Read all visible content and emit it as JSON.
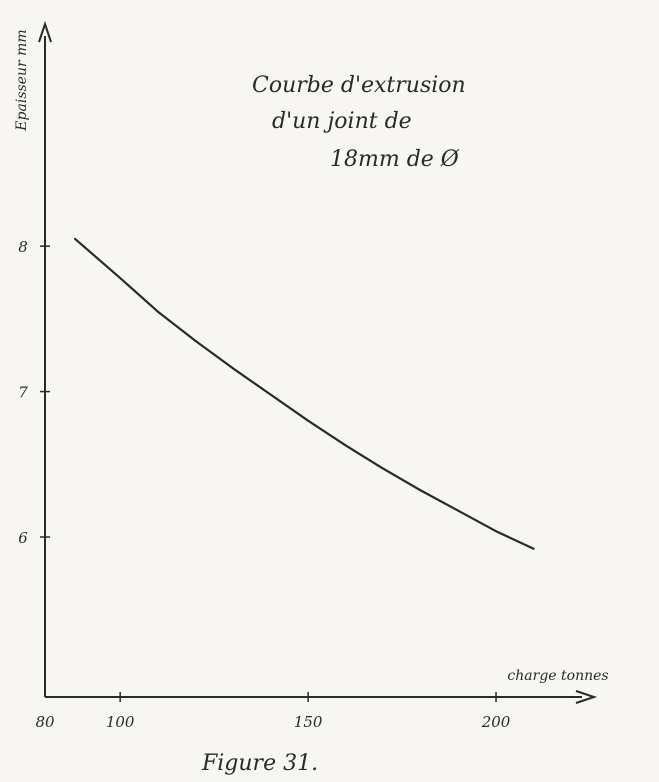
{
  "chart_data": {
    "type": "line",
    "title_lines": [
      "Courbe d'extrusion",
      "d'un joint de",
      "18mm de Ø"
    ],
    "ylabel": "Epaisseur mm",
    "xlabel": "charge tonnes",
    "xlim": [
      80,
      225
    ],
    "ylim": [
      4.9,
      9.5
    ],
    "xticks": [
      80,
      100,
      150,
      200
    ],
    "xtick_labels": [
      "80",
      "100",
      "150",
      "200"
    ],
    "yticks": [
      6,
      7,
      8
    ],
    "ytick_labels": [
      "6",
      "7",
      "8"
    ],
    "series": [
      {
        "x": [
          88,
          100,
          110,
          120,
          130,
          140,
          150,
          160,
          170,
          180,
          190,
          200,
          210
        ],
        "y": [
          8.05,
          7.78,
          7.55,
          7.35,
          7.16,
          6.98,
          6.8,
          6.63,
          6.47,
          6.32,
          6.18,
          6.04,
          5.92
        ]
      }
    ],
    "grid": false,
    "caption": "Figure 31."
  },
  "colors": {
    "ink": "#2a2a2a",
    "paper": "#f7f6f2"
  }
}
